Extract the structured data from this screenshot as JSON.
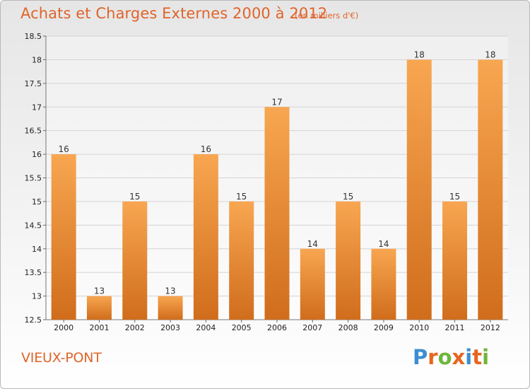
{
  "header": {
    "title": "Achats et Charges Externes 2000 à 2012",
    "unit": "(en milliers d'€)"
  },
  "footer": {
    "commune": "VIEUX-PONT",
    "brand": "Proxiti"
  },
  "colors": {
    "title": "#e0642a",
    "bar_light": "#f8a651",
    "bar_dark": "#d06d1c",
    "brand_letters": [
      "#3b8fd1",
      "#e8651e",
      "#6fb53a",
      "#e8651e",
      "#3b8fd1",
      "#e8651e",
      "#6fb53a"
    ]
  },
  "chart_data": {
    "type": "bar",
    "categories": [
      "2000",
      "2001",
      "2002",
      "2003",
      "2004",
      "2005",
      "2006",
      "2007",
      "2008",
      "2009",
      "2010",
      "2011",
      "2012"
    ],
    "values": [
      16,
      13,
      15,
      13,
      16,
      15,
      17,
      14,
      15,
      14,
      18,
      15,
      18
    ],
    "value_labels": [
      "16",
      "13",
      "15",
      "13",
      "16",
      "15",
      "17",
      "14",
      "15",
      "14",
      "18",
      "15",
      "18"
    ],
    "yticks": [
      "12.5",
      "13",
      "13.5",
      "14",
      "14.5",
      "15",
      "15.5",
      "16",
      "16.5",
      "17",
      "17.5",
      "18",
      "18.5"
    ],
    "ylim": [
      12.5,
      18.5
    ],
    "grid": true,
    "title": "Achats et Charges Externes 2000 à 2012",
    "xlabel": "",
    "ylabel": ""
  }
}
